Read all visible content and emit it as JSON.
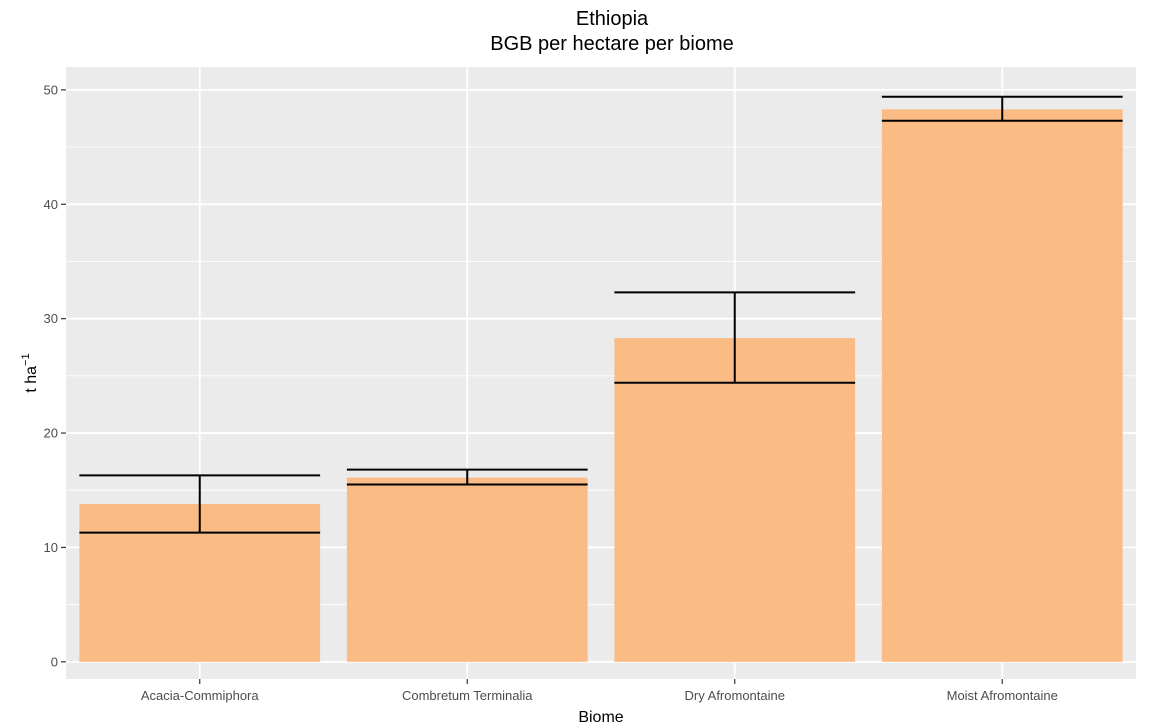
{
  "chart_data": {
    "type": "bar",
    "title": "Ethiopia",
    "subtitle": "BGB per hectare per biome",
    "xlabel": "Biome",
    "ylabel": "t ha",
    "ylabel_superscript": "−1",
    "categories": [
      "Acacia-Commiphora",
      "Combretum Terminalia",
      "Dry Afromontaine",
      "Moist Afromontaine"
    ],
    "values": [
      13.8,
      16.1,
      28.3,
      48.3
    ],
    "error_low": [
      11.3,
      15.5,
      24.4,
      47.3
    ],
    "error_high": [
      16.3,
      16.8,
      32.3,
      49.4
    ],
    "ylim": [
      -1.5,
      52
    ],
    "yticks": [
      0,
      10,
      20,
      30,
      40,
      50
    ],
    "grid": true,
    "legend": "none",
    "colors": {
      "bar": "#fbbb84",
      "panel": "#ebebeb",
      "grid": "#ffffff",
      "error_bar": "#000000"
    }
  }
}
